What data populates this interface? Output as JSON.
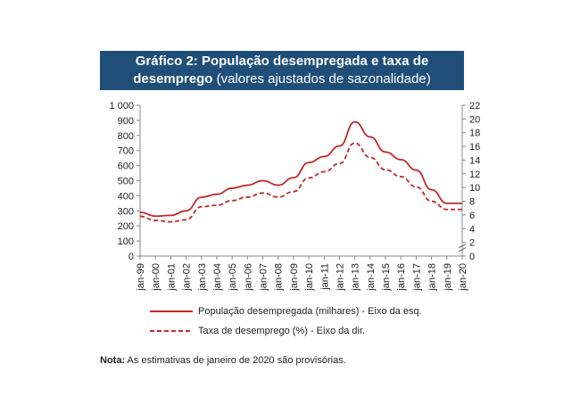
{
  "title": {
    "line1": "Gráfico 2: População desempregada e taxa de",
    "line2_bold": "desemprego",
    "line2_rest": " (valores ajustados de sazonalidade)"
  },
  "colors": {
    "title_bg": "#1f4e79",
    "series": "#c0292b"
  },
  "chart_data": {
    "type": "line",
    "x_tick_labels": [
      "jan-99",
      "jan-00",
      "jan-01",
      "jan-02",
      "jan-03",
      "jan-04",
      "jan-05",
      "jan-06",
      "jan-07",
      "jan-08",
      "jan-09",
      "jan-10",
      "jan-11",
      "jan-12",
      "jan-13",
      "jan-14",
      "jan-15",
      "jan-16",
      "jan-17",
      "jan-18",
      "jan-19",
      "jan-20"
    ],
    "left_axis": {
      "ylim": [
        0,
        1000
      ],
      "ticks": [
        "0",
        "100",
        "200",
        "300",
        "400",
        "500",
        "600",
        "700",
        "800",
        "900",
        "1 000"
      ]
    },
    "right_axis": {
      "ylim": [
        0,
        22
      ],
      "ticks": [
        "0",
        "2",
        "4",
        "6",
        "8",
        "10",
        "12",
        "14",
        "16",
        "18",
        "20",
        "22"
      ]
    },
    "series": [
      {
        "name": "População desempregada (milhares) - Eixo da esq.",
        "axis": "left",
        "style": "solid",
        "x": [
          "jan-99",
          "jan-00",
          "jan-01",
          "jan-02",
          "jan-03",
          "jan-04",
          "jan-05",
          "jan-06",
          "jan-07",
          "jan-08",
          "jan-09",
          "jan-10",
          "jan-11",
          "jan-12",
          "jan-13",
          "jan-14",
          "jan-15",
          "jan-16",
          "jan-17",
          "jan-18",
          "jan-19",
          "jan-20"
        ],
        "values": [
          290,
          265,
          270,
          300,
          390,
          410,
          450,
          470,
          500,
          470,
          520,
          620,
          660,
          730,
          890,
          790,
          690,
          640,
          570,
          440,
          350,
          350
        ]
      },
      {
        "name": "Taxa de desemprego (%) - Eixo da dir.",
        "axis": "right",
        "style": "dashed",
        "x": [
          "jan-99",
          "jan-00",
          "jan-01",
          "jan-02",
          "jan-03",
          "jan-04",
          "jan-05",
          "jan-06",
          "jan-07",
          "jan-08",
          "jan-09",
          "jan-10",
          "jan-11",
          "jan-12",
          "jan-13",
          "jan-14",
          "jan-15",
          "jan-16",
          "jan-17",
          "jan-18",
          "jan-19",
          "jan-20"
        ],
        "values": [
          5.8,
          5.2,
          5.0,
          5.3,
          7.2,
          7.4,
          8.1,
          8.6,
          9.2,
          8.6,
          9.4,
          11.4,
          12.3,
          13.5,
          16.5,
          14.4,
          12.6,
          11.6,
          10.1,
          8.0,
          6.8,
          6.8
        ]
      }
    ]
  },
  "note": {
    "label": "Nota:",
    "text": " As estimativas de janeiro de 2020 são provisórias."
  }
}
